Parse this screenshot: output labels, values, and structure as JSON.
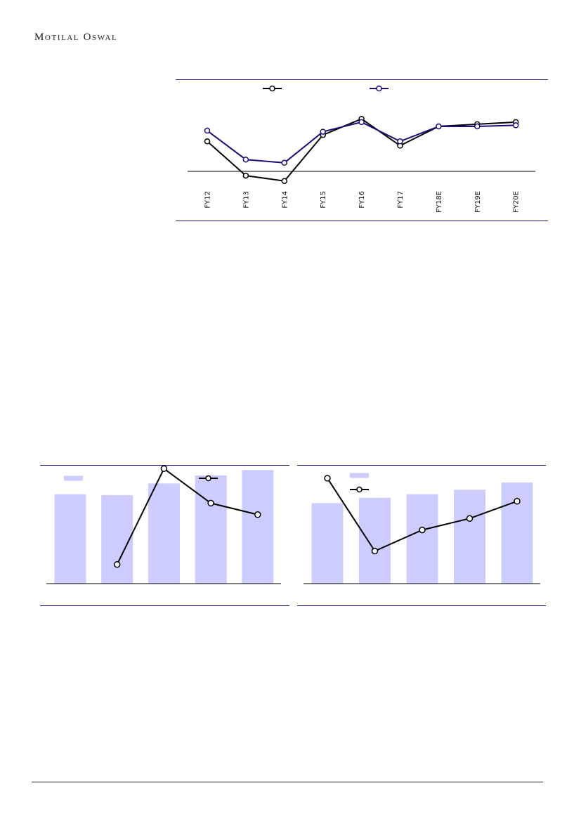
{
  "header": {
    "brand": "Motilal Oswal"
  },
  "colors": {
    "accent": "#1a0f7a",
    "bar": "#ccccff",
    "black": "#000000"
  },
  "chart_data": [
    {
      "type": "line",
      "x": [
        "FY12",
        "FY13",
        "FY14",
        "FY15",
        "FY16",
        "FY17",
        "FY18E",
        "FY19E",
        "FY20E"
      ],
      "series": [
        {
          "values": [
            14,
            -2,
            -4.5,
            17,
            24.5,
            12,
            21,
            22,
            23
          ]
        },
        {
          "values": [
            19,
            5.5,
            4,
            18.5,
            23,
            14,
            21,
            21,
            21.5
          ]
        }
      ],
      "ylim": [
        -10,
        40
      ],
      "baseline": 0
    },
    {
      "type": "bar",
      "bars": [
        100,
        99,
        112,
        121,
        127
      ],
      "line": [
        null,
        10,
        60,
        42,
        36
      ],
      "ylim_bars": [
        0,
        150
      ],
      "ylim_line": [
        0,
        70
      ]
    },
    {
      "type": "bar",
      "bars": [
        90,
        96,
        100,
        105,
        113
      ],
      "line": [
        55,
        17,
        28,
        34,
        43
      ],
      "ylim_bars": [
        0,
        150
      ],
      "ylim_line": [
        0,
        70
      ]
    }
  ]
}
